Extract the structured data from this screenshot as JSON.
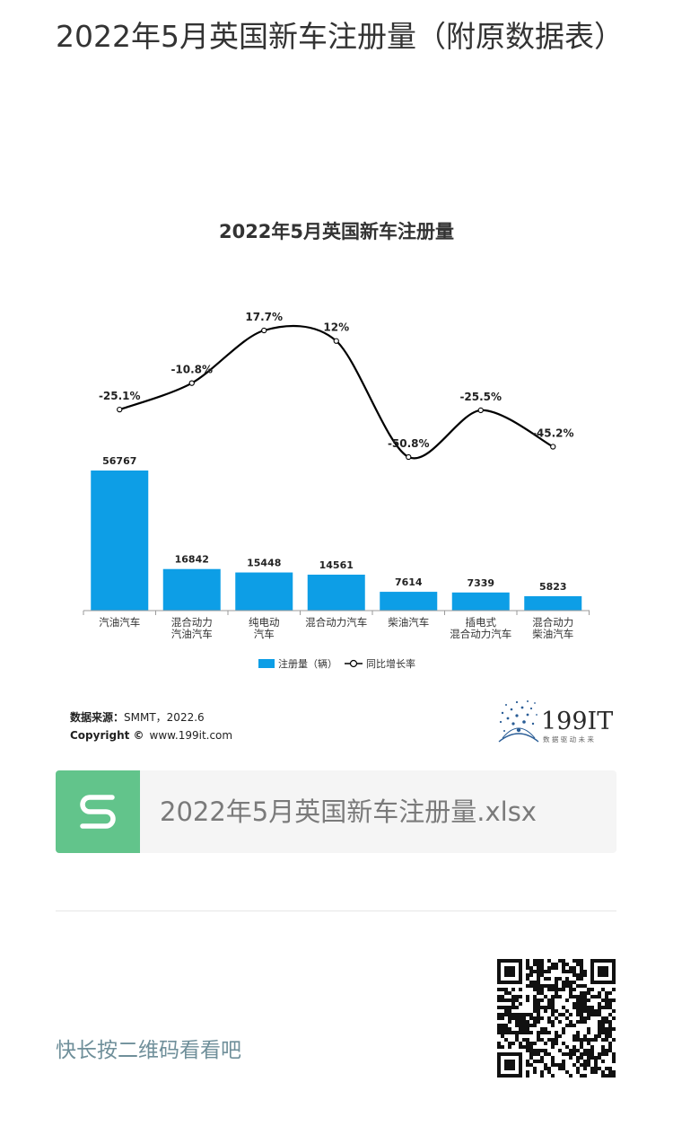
{
  "article": {
    "title": "2022年5月英国新车注册量（附原数据表）"
  },
  "chart_data": {
    "type": "bar",
    "title": "2022年5月英国新车注册量",
    "categories": [
      [
        "汽油汽车"
      ],
      [
        "混合动力",
        "汽油汽车"
      ],
      [
        "纯电动",
        "汽车"
      ],
      [
        "混合动力汽车"
      ],
      [
        "柴油汽车"
      ],
      [
        "插电式",
        "混合动力汽车"
      ],
      [
        "混合动力",
        "柴油汽车"
      ]
    ],
    "series": [
      {
        "name": "注册量（辆）",
        "type": "bar",
        "values": [
          56767,
          16842,
          15448,
          14561,
          7614,
          7339,
          5823
        ],
        "labels": [
          "56767",
          "16842",
          "15448",
          "14561",
          "7614",
          "7339",
          "5823"
        ],
        "color": "#0d9ee6"
      },
      {
        "name": "同比增长率",
        "type": "line",
        "values": [
          -25.1,
          -10.8,
          17.7,
          12,
          -50.8,
          -25.5,
          -45.2
        ],
        "labels": [
          "-25.1%",
          "-10.8%",
          "17.7%",
          "12%",
          "-50.8%",
          "-25.5%",
          "-45.2%"
        ],
        "color": "#000000"
      }
    ],
    "legend_position": "bottom",
    "grid": false,
    "source_label": "数据来源：",
    "source_value": "SMMT，2022.6",
    "copyright_label": "Copyright ©",
    "copyright_value": "www.199it.com",
    "logo_text": "199IT",
    "logo_tagline": "数 据 驱 动 未 来"
  },
  "attachment": {
    "icon": "spreadsheet-s-icon",
    "icon_color": "#62c48b",
    "file_name": "2022年5月英国新车注册量.xlsx"
  },
  "footer": {
    "qr_hint": "快长按二维码看看吧",
    "qr_icon": "qr-code-icon"
  }
}
